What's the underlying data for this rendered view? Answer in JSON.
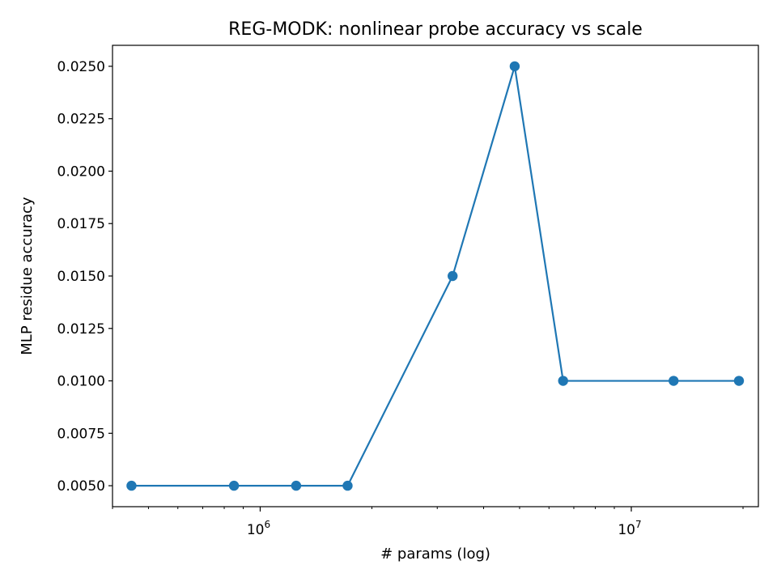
{
  "chart_data": {
    "type": "line",
    "title": "REG-MODK: nonlinear probe accuracy vs scale",
    "xlabel": "# params (log)",
    "ylabel": "MLP residue accuracy",
    "xscale": "log",
    "xlim": [
      400000,
      22000000
    ],
    "ylim": [
      0.004,
      0.026
    ],
    "grid": false,
    "legend": "none",
    "series": [
      {
        "color": "#1f77b4",
        "marker": "circle",
        "x": [
          450000,
          850000,
          1250000,
          1720000,
          3300000,
          4850000,
          6550000,
          13000000,
          19500000
        ],
        "y": [
          0.005,
          0.005,
          0.005,
          0.005,
          0.015,
          0.025,
          0.01,
          0.01,
          0.01
        ]
      }
    ],
    "yticks": [
      0.005,
      0.0075,
      0.01,
      0.0125,
      0.015,
      0.0175,
      0.02,
      0.0225,
      0.025
    ],
    "ytick_labels": [
      "0.0050",
      "0.0075",
      "0.0100",
      "0.0125",
      "0.0150",
      "0.0175",
      "0.0200",
      "0.0225",
      "0.0250"
    ],
    "xticks_major": [
      1000000,
      10000000
    ],
    "xtick_labels": [
      {
        "base": "10",
        "exp": "6"
      },
      {
        "base": "10",
        "exp": "7"
      }
    ],
    "xticks_minor": [
      400000,
      500000,
      600000,
      700000,
      800000,
      900000,
      2000000,
      3000000,
      4000000,
      5000000,
      6000000,
      7000000,
      8000000,
      9000000,
      20000000
    ]
  }
}
